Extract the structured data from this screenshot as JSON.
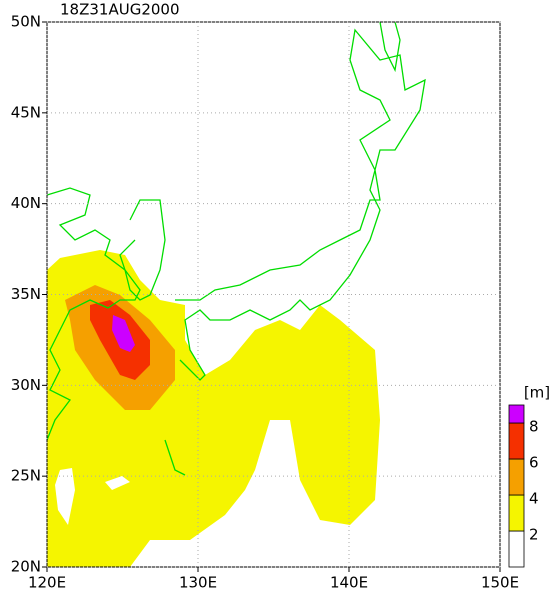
{
  "map": {
    "title": "18Z31AUG2000",
    "xlim": [
      120,
      150
    ],
    "ylim": [
      20,
      50
    ],
    "xticks": [
      {
        "value": 120,
        "label": "120E"
      },
      {
        "value": 130,
        "label": "130E"
      },
      {
        "value": 140,
        "label": "140E"
      },
      {
        "value": 150,
        "label": "150E"
      }
    ],
    "yticks": [
      {
        "value": 20,
        "label": "20N"
      },
      {
        "value": 25,
        "label": "25N"
      },
      {
        "value": 30,
        "label": "30N"
      },
      {
        "value": 35,
        "label": "35N"
      },
      {
        "value": 40,
        "label": "40N"
      },
      {
        "value": 45,
        "label": "45N"
      },
      {
        "value": 50,
        "label": "50N"
      }
    ],
    "colorbar": {
      "unit": "[m]",
      "levels": [
        2,
        4,
        6,
        8
      ],
      "colors": [
        "#ffffff",
        "#f5f500",
        "#f5a000",
        "#f53000",
        "#cc00ff"
      ]
    }
  }
}
